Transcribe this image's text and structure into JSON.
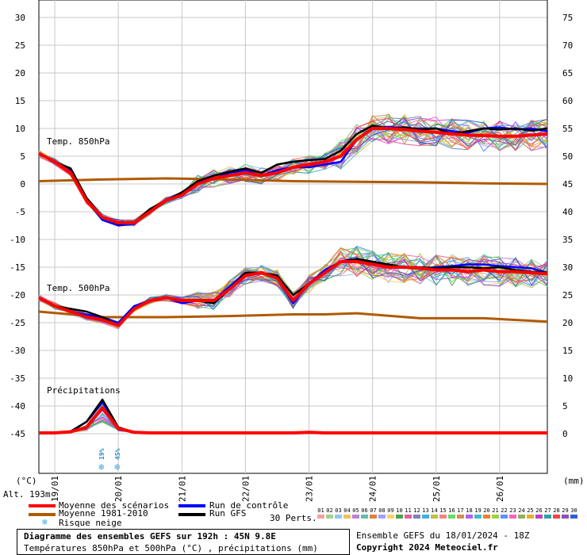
{
  "chart_data": {
    "type": "line",
    "title": "Diagramme des ensembles GEFS sur 192h : 45N 9.8E",
    "subtitle": "Températures 850hPa et 500hPa (°C) , précipitations (mm)",
    "left_axis": {
      "unit": "(°C)",
      "ticks": [
        30,
        25,
        20,
        15,
        10,
        5,
        0,
        -5,
        -10,
        -15,
        -20,
        -25,
        -30,
        -35,
        -40,
        -45
      ],
      "ylim": [
        -45,
        30
      ]
    },
    "right_axis": {
      "unit": "(mm)",
      "ticks": [
        75,
        70,
        65,
        60,
        55,
        50,
        45,
        40,
        35,
        30,
        25,
        20,
        15,
        10,
        5,
        0
      ]
    },
    "x_ticks": [
      "19/01",
      "20/01",
      "21/01",
      "22/01",
      "23/01",
      "24/01",
      "25/01",
      "26/01"
    ],
    "x_hours": [
      6,
      30,
      54,
      78,
      102,
      126,
      150,
      174
    ],
    "x_range_hours": [
      0,
      192
    ],
    "grid": true,
    "altitude": "Alt. 193m",
    "sections": {
      "t850_label": "Temp. 850hPa",
      "t500_label": "Temp. 500hPa",
      "precip_label": "Précipitations"
    },
    "snow_risk": [
      {
        "hour": 24,
        "label": "19%"
      },
      {
        "hour": 30,
        "label": "45%"
      }
    ],
    "series": [
      {
        "name": "Moyenne des scénarios",
        "panel": "t850",
        "color": "#ff0000",
        "x": [
          0,
          6,
          12,
          18,
          24,
          30,
          36,
          42,
          48,
          54,
          60,
          66,
          72,
          78,
          84,
          90,
          96,
          102,
          108,
          114,
          120,
          126,
          132,
          138,
          144,
          150,
          156,
          162,
          168,
          174,
          180,
          186,
          192
        ],
        "values": [
          5.5,
          4,
          2,
          -3,
          -6,
          -7,
          -7,
          -5,
          -3,
          -2,
          0,
          1,
          1.5,
          2,
          1.5,
          2,
          3,
          3.5,
          4,
          5,
          8,
          10,
          10,
          9.8,
          9.5,
          9.3,
          9,
          8.8,
          8.7,
          8.6,
          8.6,
          8.8,
          9
        ]
      },
      {
        "name": "Run de contrôle",
        "panel": "t850",
        "color": "#0000ff",
        "x": [
          0,
          6,
          12,
          18,
          24,
          30,
          36,
          42,
          48,
          54,
          60,
          66,
          72,
          78,
          84,
          90,
          96,
          102,
          108,
          114,
          120,
          126,
          132,
          138,
          144,
          150,
          156,
          162,
          168,
          174,
          180,
          186,
          192
        ],
        "values": [
          5.5,
          4,
          2.5,
          -3,
          -6.5,
          -7.5,
          -7.2,
          -5,
          -3,
          -2,
          0.5,
          1,
          2,
          2.5,
          1.5,
          2.5,
          3,
          3,
          3.5,
          4,
          8,
          10,
          10.3,
          10,
          10,
          10,
          9.5,
          9.2,
          10,
          10.2,
          9.8,
          10,
          9.5
        ]
      },
      {
        "name": "Run GFS",
        "panel": "t850",
        "color": "#000000",
        "x": [
          0,
          6,
          12,
          18,
          24,
          30,
          36,
          42,
          48,
          54,
          60,
          66,
          72,
          78,
          84,
          90,
          96,
          102,
          108,
          114,
          120,
          126,
          132,
          138,
          144,
          150,
          156,
          162,
          168,
          174,
          180,
          186,
          192
        ],
        "values": [
          5.5,
          4,
          2.8,
          -2.5,
          -6,
          -7.2,
          -7,
          -4.5,
          -3,
          -1.5,
          0.5,
          1.5,
          2.2,
          2.8,
          2,
          3.5,
          4,
          4.3,
          4.5,
          6,
          9,
          10.5,
          10,
          10.2,
          9.8,
          10,
          9,
          9.5,
          10,
          9.8,
          10,
          9.6,
          10
        ]
      },
      {
        "name": "Moyenne 1981-2010",
        "panel": "t850",
        "color": "#b05a00",
        "x": [
          0,
          24,
          48,
          72,
          96,
          120,
          144,
          168,
          192
        ],
        "values": [
          0.5,
          0.8,
          1,
          0.8,
          0.5,
          0.4,
          0.3,
          0.1,
          0
        ]
      },
      {
        "name": "Moyenne des scénarios",
        "panel": "t500",
        "color": "#ff0000",
        "x": [
          0,
          6,
          12,
          18,
          24,
          30,
          36,
          42,
          48,
          54,
          60,
          66,
          72,
          78,
          84,
          90,
          96,
          102,
          108,
          114,
          120,
          126,
          132,
          138,
          144,
          150,
          156,
          162,
          168,
          174,
          180,
          186,
          192
        ],
        "values": [
          -20.5,
          -22,
          -23,
          -24,
          -24.5,
          -25.5,
          -22.5,
          -21,
          -20.5,
          -21,
          -21,
          -21,
          -19,
          -16.5,
          -16,
          -17,
          -21,
          -18,
          -16,
          -14,
          -14,
          -14.5,
          -15,
          -15,
          -15.2,
          -15.5,
          -15.5,
          -15.8,
          -15.5,
          -15.8,
          -15.8,
          -16,
          -16.2
        ]
      },
      {
        "name": "Run de contrôle",
        "panel": "t500",
        "color": "#0000ff",
        "x": [
          0,
          6,
          12,
          18,
          24,
          30,
          36,
          42,
          48,
          54,
          60,
          66,
          72,
          78,
          84,
          90,
          96,
          102,
          108,
          114,
          120,
          126,
          132,
          138,
          144,
          150,
          156,
          162,
          168,
          174,
          180,
          186,
          192
        ],
        "values": [
          -20.5,
          -22,
          -23,
          -23.5,
          -24,
          -25,
          -22,
          -21,
          -20.5,
          -21.5,
          -21,
          -21,
          -18.5,
          -16,
          -16,
          -17,
          -21.5,
          -18,
          -15.5,
          -14,
          -13.5,
          -14.2,
          -14.8,
          -15,
          -15.2,
          -15,
          -14.8,
          -14.5,
          -14.5,
          -14.8,
          -15,
          -15.2,
          -16
        ]
      },
      {
        "name": "Run GFS",
        "panel": "t500",
        "color": "#000000",
        "x": [
          0,
          6,
          12,
          18,
          24,
          30,
          36,
          42,
          48,
          54,
          60,
          66,
          72,
          78,
          84,
          90,
          96,
          102,
          108,
          114,
          120,
          126,
          132,
          138,
          144,
          150,
          156,
          162,
          168,
          174,
          180,
          186,
          192
        ],
        "values": [
          -20.5,
          -22,
          -22.5,
          -23,
          -24,
          -25.5,
          -22.5,
          -21,
          -20.5,
          -21,
          -21,
          -21.5,
          -19,
          -16,
          -16,
          -16.5,
          -20,
          -18,
          -16,
          -14,
          -13.5,
          -14,
          -14.5,
          -15,
          -15,
          -15.2,
          -15,
          -15,
          -15.2,
          -15,
          -15.5,
          -15.8,
          -16
        ]
      },
      {
        "name": "Moyenne 1981-2010",
        "panel": "t500",
        "color": "#b05a00",
        "x": [
          0,
          24,
          48,
          72,
          96,
          108,
          120,
          144,
          168,
          192
        ],
        "values": [
          -23,
          -24,
          -24,
          -23.8,
          -23.5,
          -23.5,
          -23.3,
          -24.2,
          -24.2,
          -24.8
        ]
      },
      {
        "name": "Moyenne des scénarios",
        "panel": "precip",
        "color": "#ff0000",
        "x": [
          0,
          6,
          12,
          18,
          24,
          30,
          36,
          42,
          48,
          96,
          102,
          108,
          192
        ],
        "values": [
          0,
          0,
          0.2,
          1,
          4.5,
          0.8,
          0.1,
          0,
          0,
          0,
          0.1,
          0,
          0
        ]
      },
      {
        "name": "Run de contrôle",
        "panel": "precip",
        "color": "#0000ff",
        "x": [
          0,
          6,
          12,
          18,
          24,
          30,
          36,
          42,
          48,
          192
        ],
        "values": [
          0,
          0,
          0.3,
          2,
          5.5,
          1,
          0.1,
          0,
          0,
          0
        ]
      },
      {
        "name": "Run GFS",
        "panel": "precip",
        "color": "#000000",
        "x": [
          0,
          6,
          12,
          18,
          24,
          30,
          36,
          42,
          48,
          192
        ],
        "values": [
          0,
          0,
          0.2,
          2,
          6,
          1,
          0.1,
          0,
          0,
          0
        ]
      }
    ]
  },
  "legend": {
    "mean": "Moyenne des scénarios",
    "climo": "Moyenne 1981-2010",
    "snow": "Risque neige",
    "control": "Run de contrôle",
    "gfs": "Run GFS",
    "perts_label": "30 Perts.",
    "perts": [
      "01",
      "02",
      "03",
      "04",
      "05",
      "06",
      "07",
      "08",
      "09",
      "10",
      "11",
      "12",
      "13",
      "14",
      "15",
      "16",
      "17",
      "18",
      "19",
      "20",
      "21",
      "22",
      "23",
      "24",
      "25",
      "26",
      "27",
      "28",
      "29",
      "30"
    ],
    "pert_colors": [
      "#f4a0a0",
      "#9fd490",
      "#90c8f0",
      "#f0c060",
      "#c080d0",
      "#60c0b0",
      "#e08040",
      "#a0a0ff",
      "#ffd060",
      "#50a050",
      "#e060a0",
      "#8080c0",
      "#40b0e0",
      "#c0c040",
      "#ff8080",
      "#60e060",
      "#d09050",
      "#b060f0",
      "#40c0c0",
      "#f08030",
      "#a0d040",
      "#6090ff",
      "#ff60c0",
      "#90b060",
      "#e0b030",
      "#c040c0",
      "#30a0a0",
      "#ff4040",
      "#9050b0",
      "#3060d0"
    ]
  },
  "footer": {
    "title": "Diagramme des ensembles GEFS sur 192h : 45N 9.8E",
    "subtitle": "Températures 850hPa et 500hPa (°C) , précipitations (mm)",
    "run": "Ensemble GEFS du 18/01/2024 - 18Z",
    "copyright": "Copyright 2024 Meteociel.fr"
  }
}
